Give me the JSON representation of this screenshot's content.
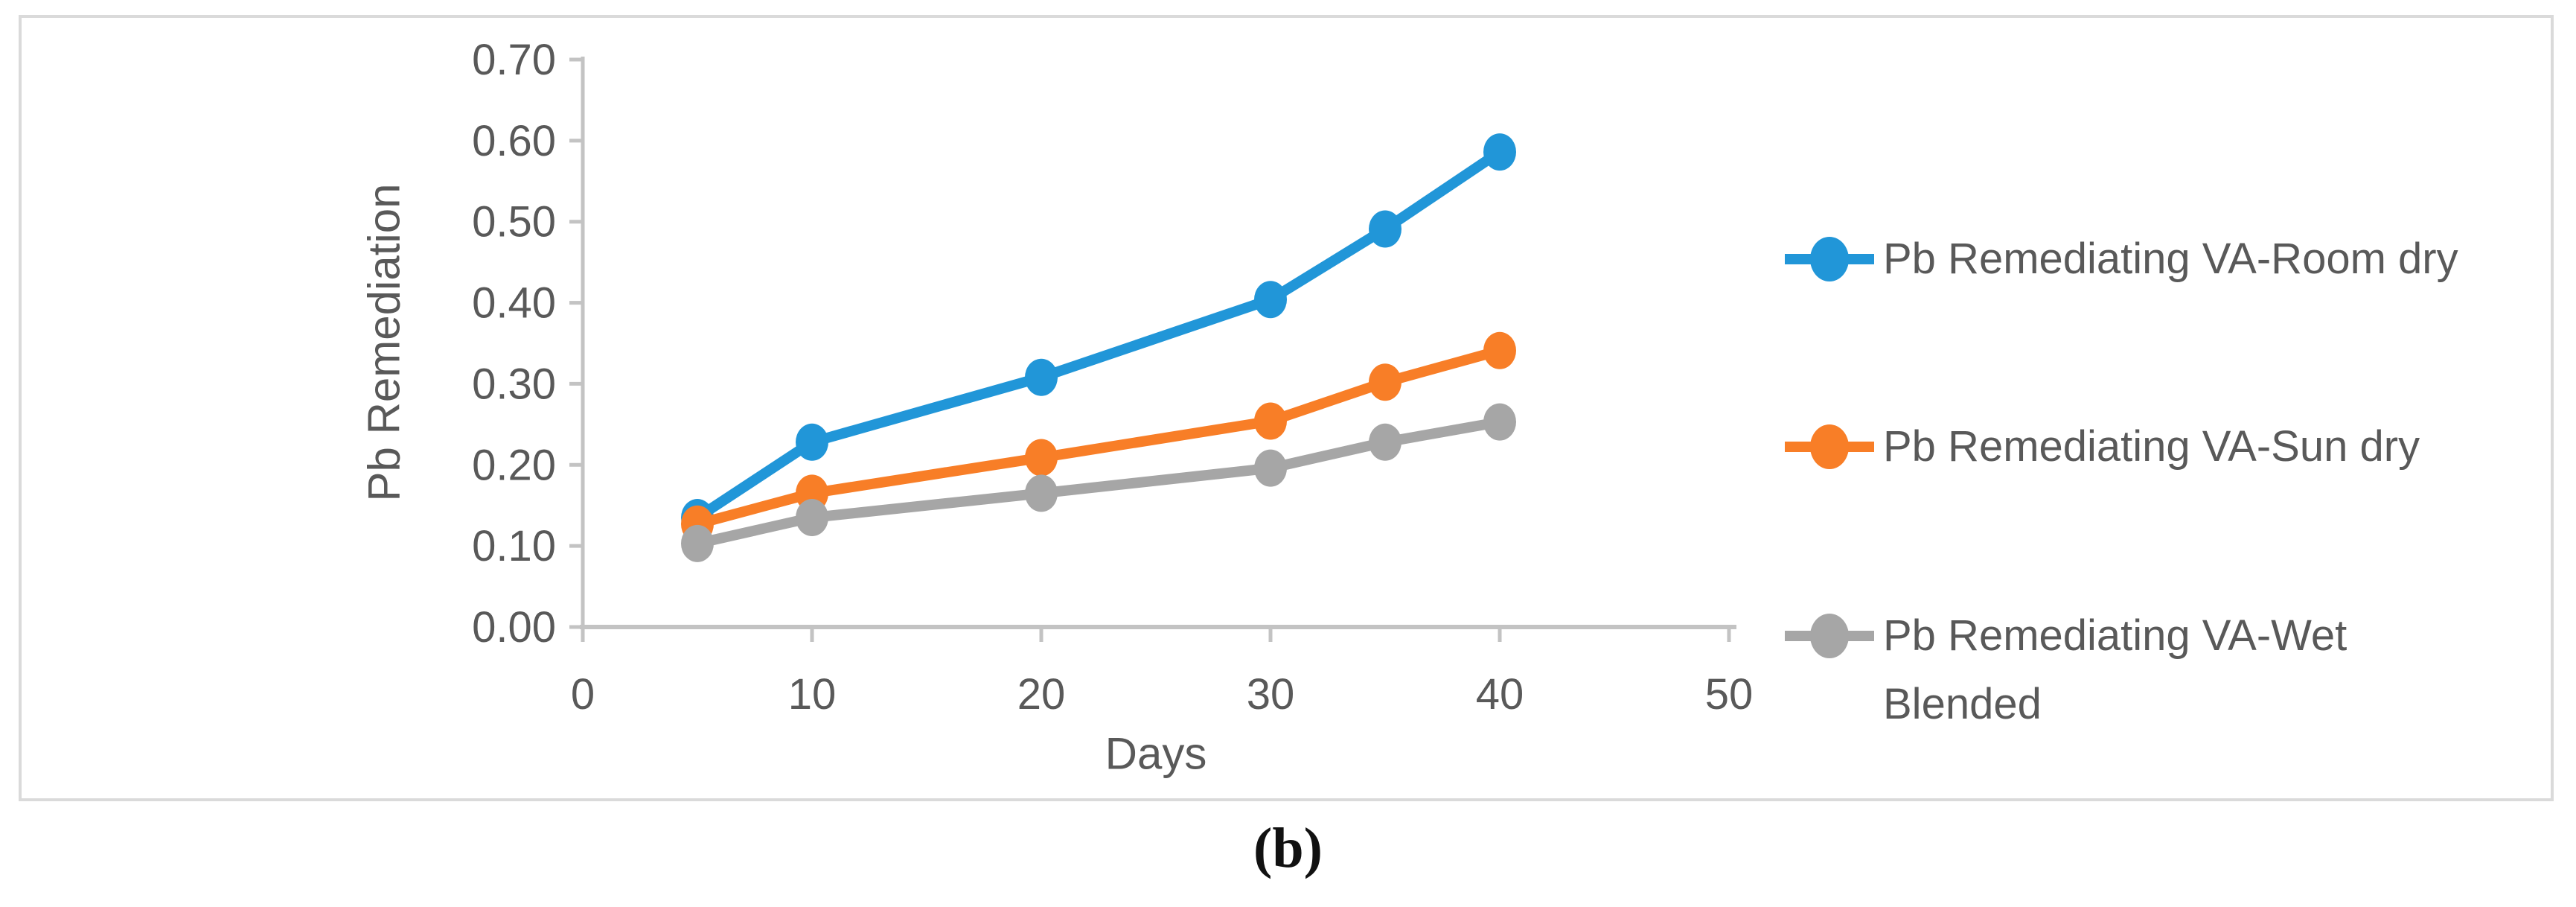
{
  "figure": {
    "caption": "(b)"
  },
  "colors": {
    "series_blue": "#2196D8",
    "series_orange": "#F87E27",
    "series_gray": "#A6A6A6",
    "axis_line": "#C3C3C3",
    "text": "#595959",
    "panel_border": "#DADADA",
    "background": "#FFFFFF"
  },
  "chart_data": {
    "type": "line",
    "title": "",
    "xlabel": "Days",
    "ylabel": "Pb Remediation",
    "x": [
      5,
      10,
      20,
      30,
      35,
      40
    ],
    "series": [
      {
        "name": "Pb Remediating VA-Room dry",
        "legend_lines": [
          "Pb Remediating VA-Room dry"
        ],
        "color": "#2196D8",
        "values": [
          0.135,
          0.228,
          0.308,
          0.404,
          0.491,
          0.586
        ]
      },
      {
        "name": "Pb Remediating VA-Sun dry",
        "legend_lines": [
          "Pb Remediating VA-Sun dry"
        ],
        "color": "#F87E27",
        "values": [
          0.127,
          0.165,
          0.209,
          0.254,
          0.302,
          0.341
        ]
      },
      {
        "name": "Pb Remediating VA-Wet Blended",
        "legend_lines": [
          "Pb Remediating VA-Wet",
          "Blended"
        ],
        "color": "#A6A6A6",
        "values": [
          0.103,
          0.135,
          0.165,
          0.196,
          0.228,
          0.253
        ]
      }
    ],
    "xlim": [
      0,
      50
    ],
    "ylim": [
      0.0,
      0.7
    ],
    "xticks": [
      "0",
      "10",
      "20",
      "30",
      "40",
      "50"
    ],
    "yticks": [
      "0.00",
      "0.10",
      "0.20",
      "0.30",
      "0.40",
      "0.50",
      "0.60",
      "0.70"
    ],
    "grid": false,
    "legend_position": "right",
    "marker": "circle"
  }
}
